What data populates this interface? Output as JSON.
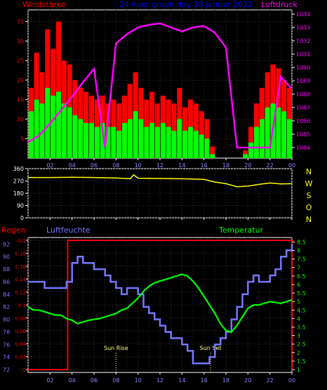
{
  "chart_data": [
    {
      "type": "bar",
      "title": "24 hour graph day  28 Januar 2022",
      "left_label": "Windstärke",
      "right_label": "Luftdruck",
      "x_ticks": [
        "02",
        "04",
        "06",
        "08",
        "10",
        "12",
        "14",
        "16",
        "18",
        "20",
        "22",
        "00"
      ],
      "y_left_ticks": [
        "5",
        "10",
        "15",
        "20",
        "25",
        "30",
        "35"
      ],
      "y_left_range": [
        0,
        38
      ],
      "y_right_ticks": [
        "1084",
        "1085",
        "1086",
        "1087",
        "1088",
        "1089",
        "1090",
        "1031",
        "1032",
        "1033",
        "1034"
      ],
      "y_right_range": [
        1083.4,
        1034.6
      ],
      "series": [
        {
          "name": "Windstärke",
          "color": "#ff0000",
          "hours": [
            0.5,
            1,
            1.5,
            2,
            2.5,
            3,
            3.5,
            4,
            4.5,
            5,
            5.5,
            6,
            6.5,
            7,
            7.5,
            8,
            8.5,
            9,
            9.5,
            10,
            10.5,
            11,
            11.5,
            12,
            12.5,
            13,
            13.5,
            14,
            14.5,
            15,
            15.5,
            16,
            16.5,
            17,
            17.5,
            18,
            18.5,
            19,
            19.5,
            20,
            20.5,
            21,
            21.5,
            22,
            22.5,
            23,
            23.5,
            24
          ],
          "values": [
            18,
            27,
            22,
            33,
            28,
            35,
            25,
            24,
            20,
            18,
            17,
            16,
            15,
            16,
            14,
            15,
            14,
            16,
            19,
            22,
            18,
            15,
            17,
            14,
            16,
            15,
            14,
            18,
            13,
            15,
            14,
            12,
            10,
            3,
            0,
            0,
            0,
            0,
            0,
            2,
            8,
            14,
            18,
            22,
            24,
            23,
            20,
            18
          ]
        },
        {
          "name": "Böen",
          "color": "#00ff00",
          "hours": [
            0.5,
            1,
            1.5,
            2,
            2.5,
            3,
            3.5,
            4,
            4.5,
            5,
            5.5,
            6,
            6.5,
            7,
            7.5,
            8,
            8.5,
            9,
            9.5,
            10,
            10.5,
            11,
            11.5,
            12,
            12.5,
            13,
            13.5,
            14,
            14.5,
            15,
            15.5,
            16,
            16.5,
            17,
            17.5,
            18,
            18.5,
            19,
            19.5,
            20,
            20.5,
            21,
            21.5,
            22,
            22.5,
            23,
            23.5,
            24
          ],
          "values": [
            12,
            15,
            14,
            18,
            16,
            17,
            14,
            13,
            11,
            10,
            9,
            9,
            8,
            9,
            8,
            8,
            7,
            9,
            10,
            12,
            10,
            8,
            9,
            8,
            9,
            8,
            7,
            10,
            7,
            8,
            7,
            6,
            5,
            1,
            0,
            0,
            0,
            0,
            0,
            1,
            4,
            8,
            10,
            13,
            14,
            13,
            12,
            10
          ]
        },
        {
          "name": "Luftdruck",
          "color": "#ff00ff",
          "hours": [
            0,
            1,
            2,
            3,
            4,
            5,
            6,
            7,
            8,
            9,
            10,
            11,
            12,
            13,
            14,
            15,
            16,
            17,
            18,
            19,
            20,
            21,
            22,
            23,
            24
          ],
          "values": [
            1084.4,
            1084.9,
            1085.8,
            1086.8,
            1087.8,
            1088.9,
            1089.9,
            1090.9,
            1031.8,
            1032.5,
            1033.0,
            1033.2,
            1033.3,
            1033.0,
            1032.7,
            1033.0,
            1033.1,
            1032.6,
            1031.5,
            1030.9,
            1030.6,
            1030.3,
            1029.9,
            1089.3,
            1088.4
          ]
        }
      ]
    },
    {
      "type": "line",
      "right_labels": [
        "N",
        "W",
        "S",
        "O",
        "N"
      ],
      "x_ticks": [
        "02",
        "04",
        "06",
        "08",
        "10",
        "12",
        "14",
        "16",
        "18",
        "20",
        "22",
        "00"
      ],
      "y_ticks": [
        "0",
        "90",
        "180",
        "270",
        "360"
      ],
      "y_range": [
        0,
        360
      ],
      "series": [
        {
          "name": "Windrichtung",
          "color": "#ffff00",
          "hours": [
            0,
            2,
            4,
            6,
            8,
            9.3,
            9.6,
            10,
            12,
            14,
            16,
            17,
            18,
            19,
            20,
            21,
            22,
            23,
            24
          ],
          "values": [
            295,
            295,
            297,
            295,
            292,
            286,
            315,
            290,
            288,
            286,
            282,
            262,
            250,
            228,
            232,
            245,
            255,
            248,
            250
          ]
        }
      ]
    },
    {
      "type": "line",
      "labels": {
        "regen": "Regen",
        "luftfeuchte": "Luftfeuchte",
        "temperatur": "Temperatur"
      },
      "x_ticks": [
        "02",
        "04",
        "06",
        "08",
        "10",
        "12",
        "14",
        "16",
        "18",
        "20",
        "22",
        "00"
      ],
      "regen_ticks": [
        "0",
        "0.02",
        "0.04",
        "0.06",
        "0.08",
        "0.1",
        "0.12",
        "0.14",
        "0.16",
        "0.18",
        "0.2"
      ],
      "humidity_ticks": [
        "72",
        "74",
        "76",
        "78",
        "80",
        "82",
        "84",
        "86",
        "88",
        "90",
        "92"
      ],
      "temperature_ticks": [
        "1",
        "1.5",
        "2",
        "2.5",
        "3",
        "3.5",
        "4",
        "4.5",
        "5",
        "5.5",
        "6",
        "6.5",
        "7",
        "7.5",
        "8",
        "8.5"
      ],
      "ranges": {
        "regen": [
          0,
          0.2
        ],
        "humidity": [
          72,
          92.6
        ],
        "temperature": [
          1,
          8.6
        ]
      },
      "annotations": [
        "Sun Rise",
        "Sun Set"
      ],
      "sun_rise_hour": 8,
      "sun_set_hour": 16.6,
      "series": [
        {
          "name": "Regen",
          "color": "#ff0000",
          "hours": [
            0,
            3.6,
            3.6,
            24,
            24
          ],
          "values": [
            0,
            0,
            0.2,
            0.2,
            0
          ]
        },
        {
          "name": "Luftfeuchte",
          "color": "#7777ff",
          "hours": [
            0,
            0.5,
            1,
            1.5,
            2,
            2.5,
            3,
            3.5,
            4,
            4.5,
            5,
            5.5,
            6,
            6.5,
            7,
            7.5,
            8,
            8.5,
            9,
            9.5,
            10,
            10.5,
            11,
            11.5,
            12,
            12.5,
            13,
            13.5,
            14,
            14.5,
            15,
            15.5,
            16,
            16.5,
            17,
            17.5,
            18,
            18.5,
            19,
            19.5,
            20,
            20.5,
            21,
            21.5,
            22,
            22.5,
            23,
            23.5,
            24
          ],
          "values": [
            86,
            86,
            86,
            85,
            85,
            85,
            85,
            86,
            89,
            90,
            89,
            89,
            88,
            88,
            87,
            86,
            85,
            84,
            85,
            85,
            84,
            82,
            81,
            80,
            79,
            78,
            77,
            77,
            76,
            75,
            73,
            73,
            73,
            74,
            76,
            77,
            78,
            80,
            82,
            84,
            86,
            87,
            86,
            86,
            87,
            88,
            90,
            91,
            92
          ]
        },
        {
          "name": "Temperatur",
          "color": "#00ff00",
          "hours": [
            0,
            0.5,
            1,
            1.5,
            2,
            2.5,
            3,
            3.5,
            4,
            4.5,
            5,
            5.5,
            6,
            6.5,
            7,
            7.5,
            8,
            8.5,
            9,
            9.5,
            10,
            10.5,
            11,
            11.5,
            12,
            12.5,
            13,
            13.5,
            14,
            14.5,
            15,
            15.5,
            16,
            16.5,
            17,
            17.5,
            18,
            18.5,
            19,
            19.5,
            20,
            20.5,
            21,
            21.5,
            22,
            22.5,
            23,
            23.5,
            24
          ],
          "values": [
            4.7,
            4.5,
            4.5,
            4.4,
            4.3,
            4.2,
            4.2,
            4.0,
            3.9,
            3.7,
            3.8,
            3.9,
            3.95,
            4.0,
            4.1,
            4.2,
            4.3,
            4.5,
            4.6,
            4.9,
            5.2,
            5.6,
            5.9,
            6.1,
            6.2,
            6.3,
            6.4,
            6.5,
            6.6,
            6.5,
            6.2,
            5.8,
            5.3,
            4.8,
            4.3,
            3.7,
            3.3,
            3.2,
            3.6,
            4.1,
            4.6,
            4.8,
            4.8,
            4.9,
            5.0,
            4.95,
            4.9,
            5.0,
            5.1
          ]
        }
      ]
    }
  ]
}
